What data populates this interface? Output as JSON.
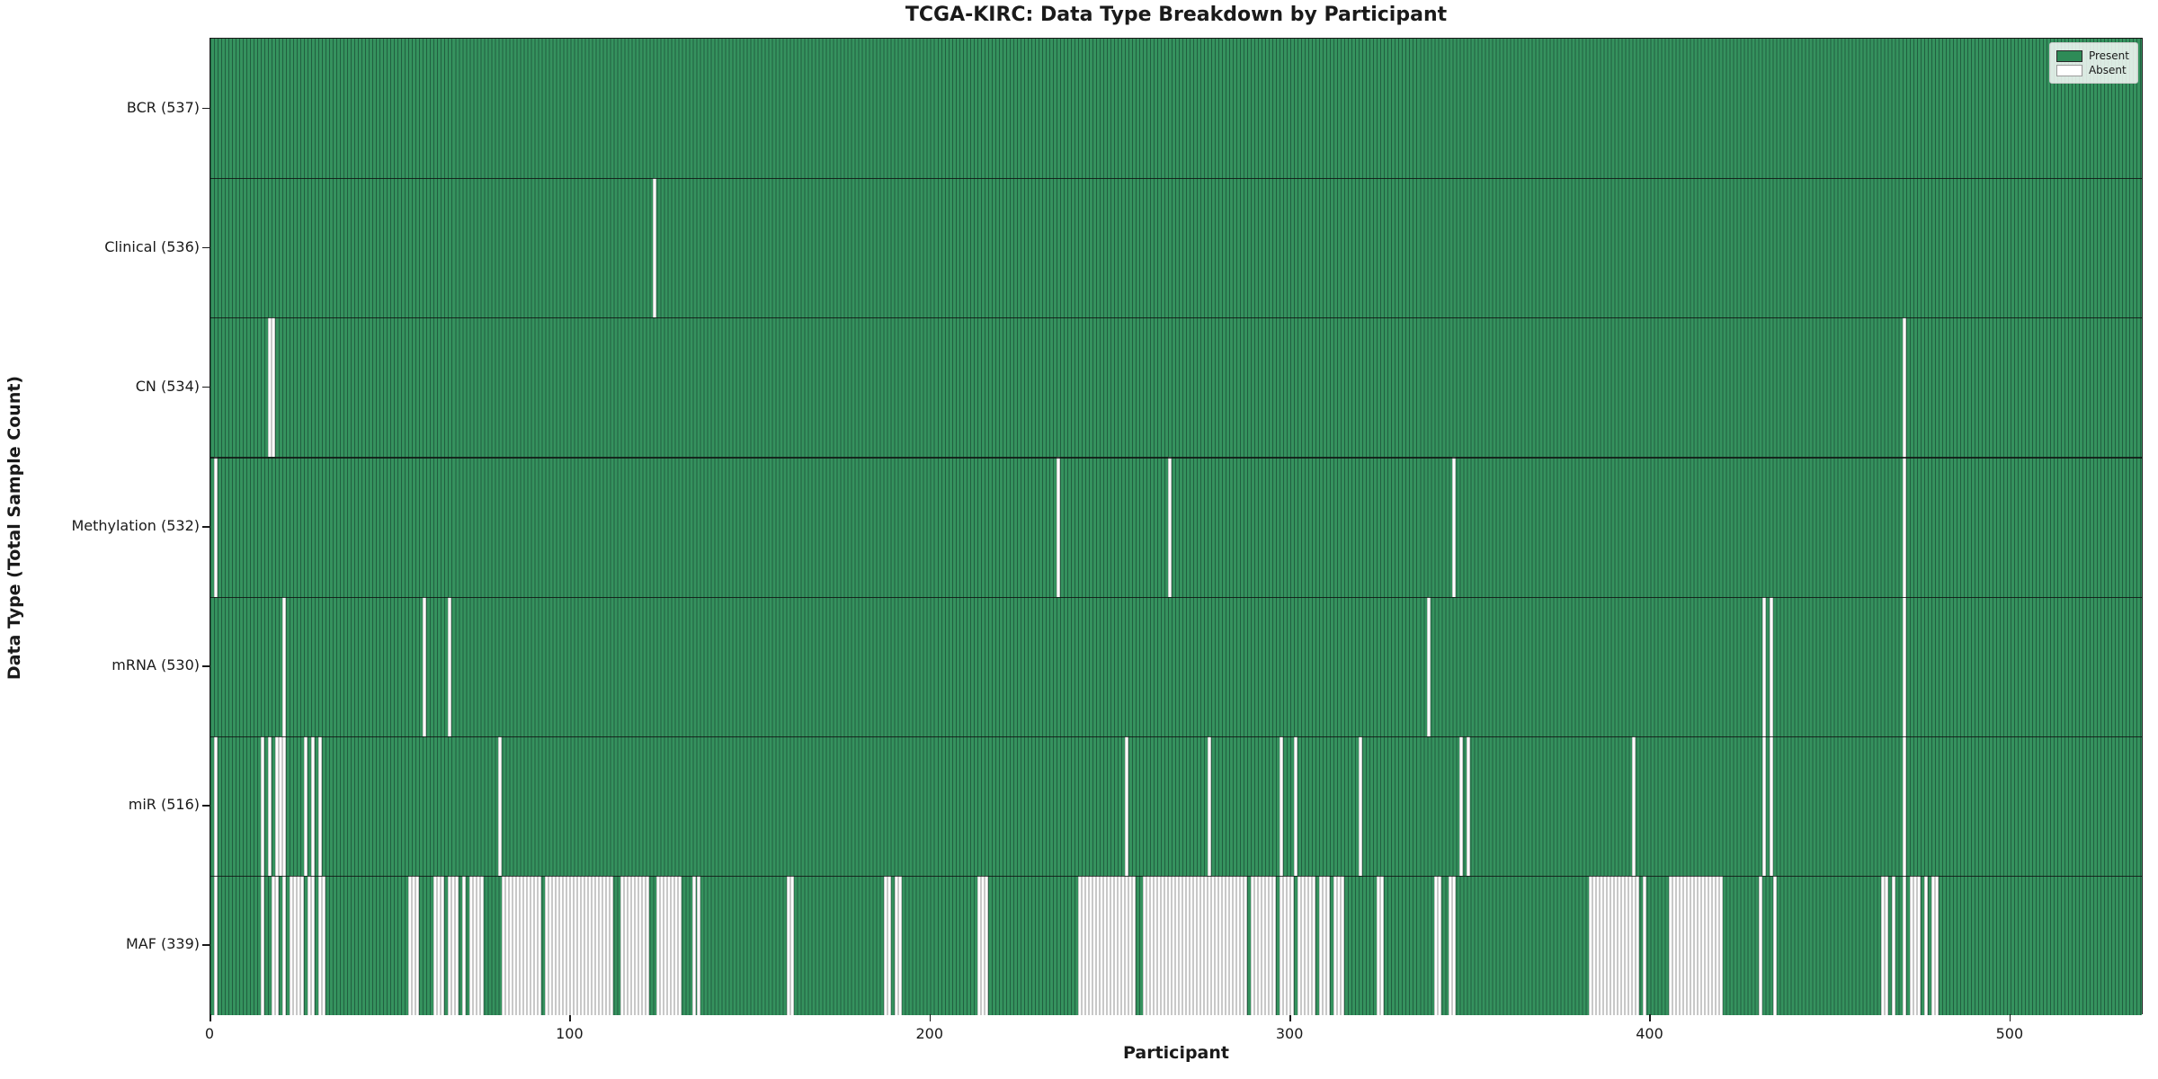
{
  "title": "TCGA-KIRC: Data Type Breakdown by Participant",
  "chart_data": {
    "type": "heatmap",
    "title": "TCGA-KIRC: Data Type Breakdown by Participant",
    "xlabel": "Participant",
    "ylabel": "Data Type (Total Sample Count)",
    "n_participants": 537,
    "x_ticks": [
      0,
      100,
      200,
      300,
      400,
      500
    ],
    "legend_position": "upper right",
    "legend": [
      {
        "label": "Present",
        "color": "#2e8b57"
      },
      {
        "label": "Absent",
        "color": "#ffffff"
      }
    ],
    "colors": {
      "present_fill": "#35925e",
      "present_edge": "#215f40",
      "absent_fill": "#ffffff",
      "absent_edge": "#c8c8c8",
      "frame": "#1a1a1a"
    },
    "rows": [
      {
        "name": "BCR",
        "label": "BCR (537)",
        "count": 537,
        "absent_ranges": []
      },
      {
        "name": "Clinical",
        "label": "Clinical (536)",
        "count": 536,
        "absent_ranges": [
          [
            123,
            123
          ]
        ]
      },
      {
        "name": "CN",
        "label": "CN (534)",
        "count": 534,
        "absent_ranges": [
          [
            16,
            17
          ],
          [
            470,
            470
          ]
        ]
      },
      {
        "name": "Methylation",
        "label": "Methylation (532)",
        "count": 532,
        "absent_ranges": [
          [
            1,
            1
          ],
          [
            235,
            235
          ],
          [
            266,
            266
          ],
          [
            345,
            345
          ],
          [
            470,
            470
          ]
        ]
      },
      {
        "name": "mRNA",
        "label": "mRNA (530)",
        "count": 530,
        "absent_ranges": [
          [
            20,
            20
          ],
          [
            59,
            59
          ],
          [
            66,
            66
          ],
          [
            338,
            338
          ],
          [
            431,
            431
          ],
          [
            433,
            433
          ],
          [
            470,
            470
          ]
        ]
      },
      {
        "name": "miR",
        "label": "miR (516)",
        "count": 516,
        "absent_ranges": [
          [
            1,
            1
          ],
          [
            14,
            14
          ],
          [
            16,
            16
          ],
          [
            18,
            20
          ],
          [
            26,
            26
          ],
          [
            28,
            28
          ],
          [
            30,
            30
          ],
          [
            80,
            80
          ],
          [
            254,
            254
          ],
          [
            277,
            277
          ],
          [
            297,
            297
          ],
          [
            301,
            301
          ],
          [
            319,
            319
          ],
          [
            347,
            347
          ],
          [
            349,
            349
          ],
          [
            395,
            395
          ],
          [
            431,
            431
          ],
          [
            433,
            433
          ],
          [
            470,
            470
          ]
        ]
      },
      {
        "name": "MAF",
        "label": "MAF (339)",
        "count": 339,
        "absent_ranges": [
          [
            1,
            1
          ],
          [
            14,
            14
          ],
          [
            17,
            18
          ],
          [
            20,
            20
          ],
          [
            22,
            25
          ],
          [
            27,
            28
          ],
          [
            30,
            31
          ],
          [
            55,
            57
          ],
          [
            62,
            64
          ],
          [
            66,
            68
          ],
          [
            70,
            70
          ],
          [
            72,
            75
          ],
          [
            81,
            91
          ],
          [
            93,
            111
          ],
          [
            114,
            121
          ],
          [
            124,
            130
          ],
          [
            134,
            135
          ],
          [
            160,
            161
          ],
          [
            187,
            188
          ],
          [
            190,
            191
          ],
          [
            213,
            215
          ],
          [
            241,
            256
          ],
          [
            259,
            287
          ],
          [
            289,
            295
          ],
          [
            297,
            300
          ],
          [
            302,
            306
          ],
          [
            308,
            310
          ],
          [
            312,
            314
          ],
          [
            324,
            325
          ],
          [
            340,
            341
          ],
          [
            344,
            345
          ],
          [
            383,
            396
          ],
          [
            398,
            398
          ],
          [
            405,
            419
          ],
          [
            430,
            430
          ],
          [
            434,
            434
          ],
          [
            464,
            465
          ],
          [
            467,
            467
          ],
          [
            470,
            470
          ],
          [
            472,
            474
          ],
          [
            476,
            476
          ],
          [
            478,
            479
          ]
        ]
      }
    ]
  }
}
